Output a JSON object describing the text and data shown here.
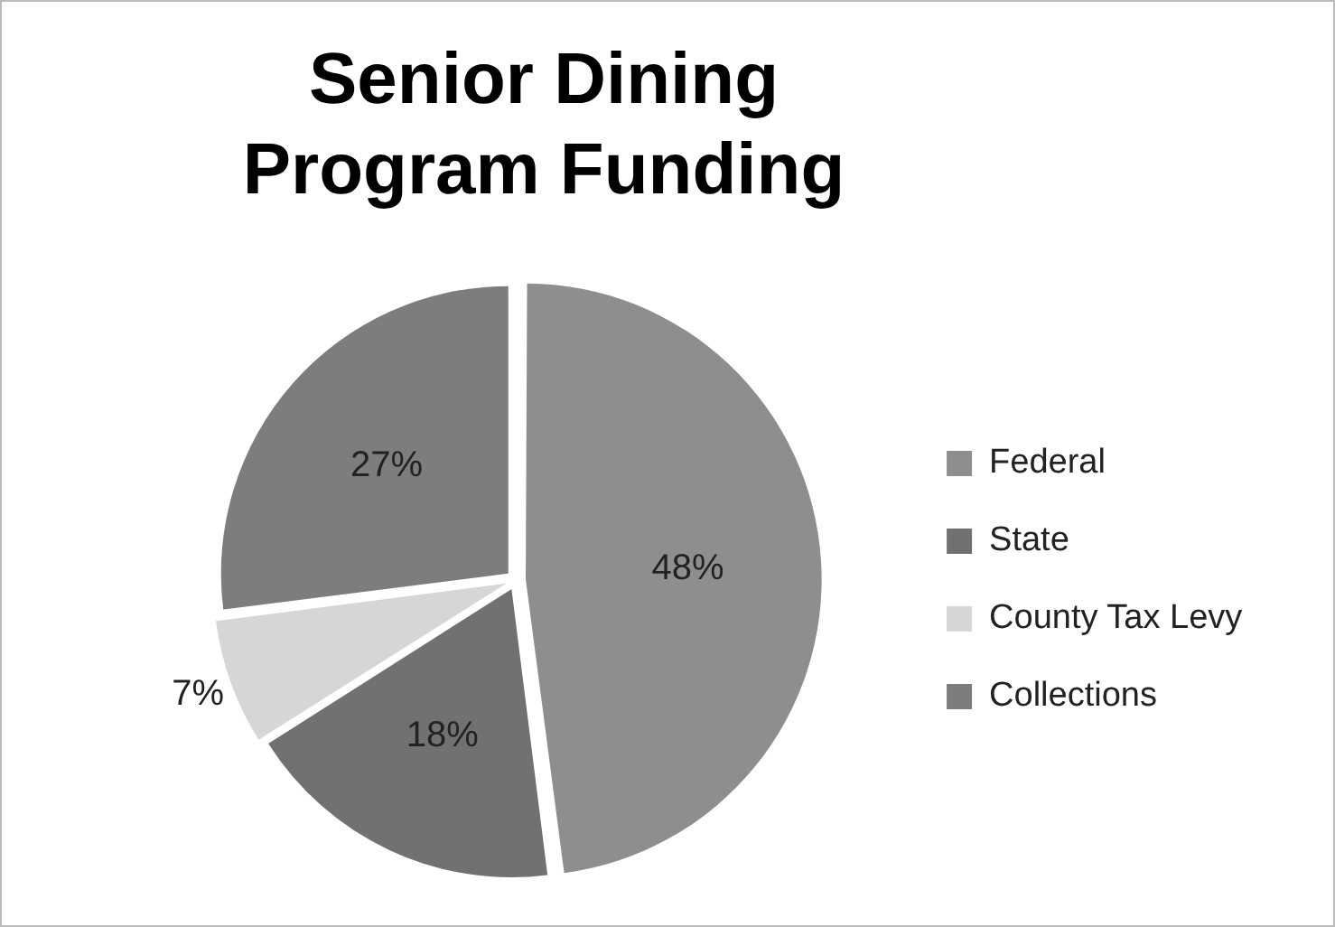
{
  "chart_data": {
    "type": "pie",
    "title": "Senior Dining Program Funding",
    "categories": [
      "Federal",
      "State",
      "County Tax Levy",
      "Collections"
    ],
    "values": [
      48,
      18,
      7,
      27
    ],
    "value_labels": [
      "48%",
      "18%",
      "7%",
      "27%"
    ],
    "colors": [
      "#8e8e8e",
      "#717171",
      "#d6d6d6",
      "#7d7d7d"
    ],
    "legend": "right"
  }
}
